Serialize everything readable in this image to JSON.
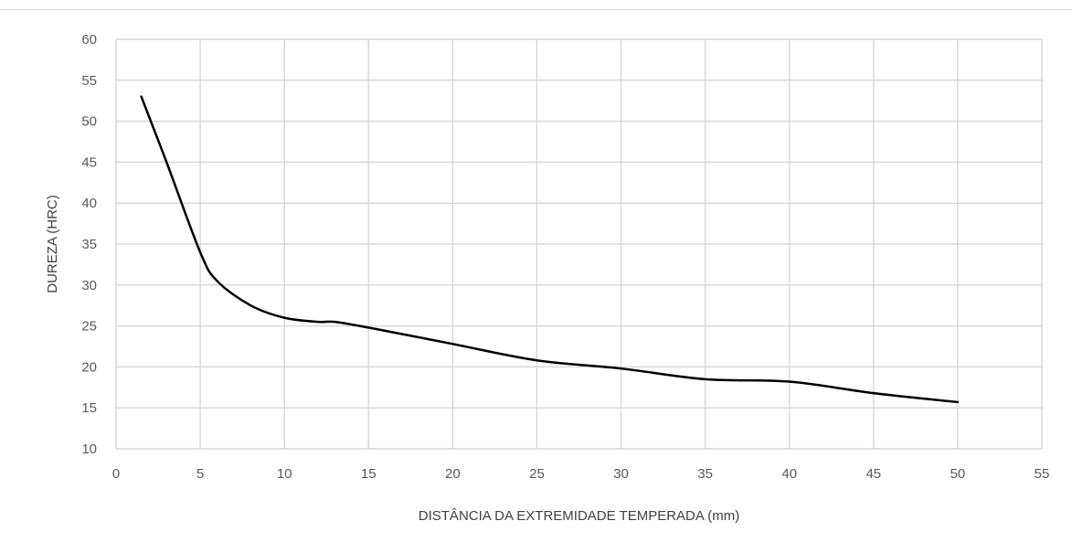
{
  "chart_data": {
    "type": "line",
    "title": "",
    "xlabel": "DISTÂNCIA DA EXTREMIDADE TEMPERADA (mm)",
    "ylabel": "DUREZA (HRC)",
    "xlim": [
      0,
      55
    ],
    "ylim": [
      10,
      60
    ],
    "xticks": [
      0,
      5,
      10,
      15,
      20,
      25,
      30,
      35,
      40,
      45,
      50,
      55
    ],
    "yticks": [
      10,
      15,
      20,
      25,
      30,
      35,
      40,
      45,
      50,
      55,
      60
    ],
    "grid": true,
    "legend": "none",
    "series": [
      {
        "color": "#000000",
        "points": [
          {
            "x": 1.5,
            "y": 53
          },
          {
            "x": 3,
            "y": 45
          },
          {
            "x": 5,
            "y": 34
          },
          {
            "x": 6,
            "y": 30.5
          },
          {
            "x": 8,
            "y": 27.5
          },
          {
            "x": 10,
            "y": 26
          },
          {
            "x": 12,
            "y": 25.5
          },
          {
            "x": 13,
            "y": 25.5
          },
          {
            "x": 15,
            "y": 24.8
          },
          {
            "x": 20,
            "y": 22.8
          },
          {
            "x": 25,
            "y": 20.8
          },
          {
            "x": 30,
            "y": 19.8
          },
          {
            "x": 35,
            "y": 18.5
          },
          {
            "x": 40,
            "y": 18.2
          },
          {
            "x": 45,
            "y": 16.8
          },
          {
            "x": 50,
            "y": 15.7
          }
        ]
      }
    ]
  },
  "colors": {
    "grid": "#d9d9d9",
    "axis_title": "#404040",
    "tick_label": "#595959",
    "line": "#000000"
  }
}
